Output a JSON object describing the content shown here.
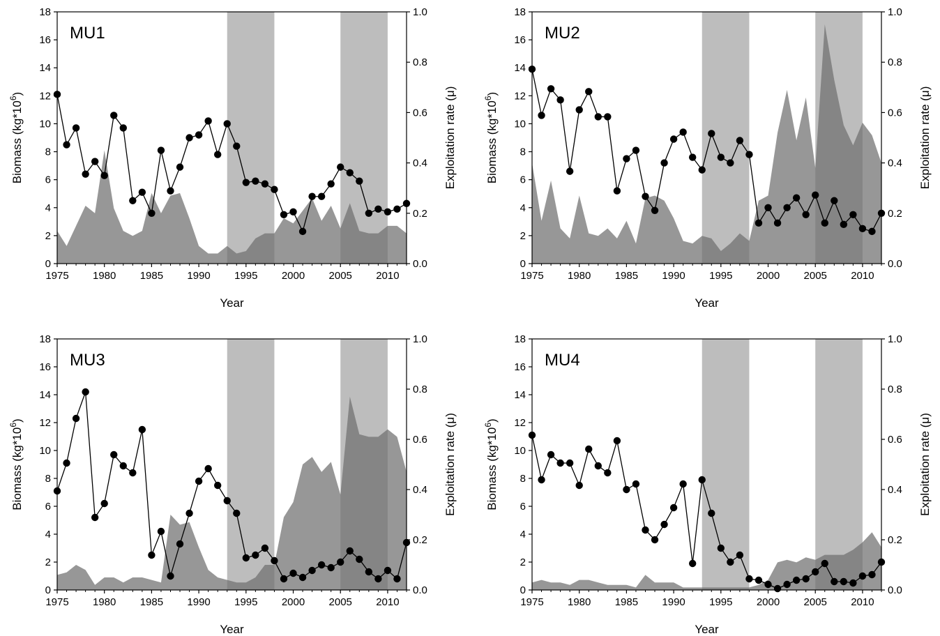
{
  "chart_data": [
    {
      "type": "line",
      "title": "MU1",
      "xlabel": "Year",
      "ylabel": "Biomass (kg*10",
      "ylabel_sup": "6",
      "ylabel_close": ")",
      "y2label": "Exploitation rate (μ)",
      "xlim": [
        1975,
        2012
      ],
      "ylim": [
        0,
        18
      ],
      "y2lim": [
        0,
        1.0
      ],
      "x_ticks": [
        1975,
        1980,
        1985,
        1990,
        1995,
        2000,
        2005,
        2010
      ],
      "y_ticks": [
        0,
        2,
        4,
        6,
        8,
        10,
        12,
        14,
        16,
        18
      ],
      "y2_ticks": [
        "0.0",
        "0.2",
        "0.4",
        "0.6",
        "0.8",
        "1.0"
      ],
      "shaded_periods": [
        [
          1993,
          1998
        ],
        [
          2005,
          2010
        ]
      ],
      "grid": false,
      "series": [
        {
          "type": "line",
          "x": [
            1975,
            1976,
            1977,
            1978,
            1979,
            1980,
            1981,
            1982,
            1983,
            1984,
            1985,
            1986,
            1987,
            1988,
            1989,
            1990,
            1991,
            1992,
            1993,
            1994,
            1995,
            1996,
            1997,
            1998,
            1999,
            2000,
            2001,
            2002,
            2003,
            2004,
            2005,
            2006,
            2007,
            2008,
            2009,
            2010,
            2011,
            2012
          ],
          "values": [
            12.1,
            8.5,
            9.7,
            6.4,
            7.3,
            6.3,
            10.6,
            9.7,
            4.5,
            5.1,
            3.6,
            8.1,
            5.2,
            6.9,
            9.0,
            9.2,
            10.2,
            7.8,
            10.0,
            8.4,
            5.8,
            5.9,
            5.7,
            5.3,
            3.5,
            3.7,
            2.3,
            4.8,
            4.8,
            5.7,
            6.9,
            6.5,
            5.9,
            3.6,
            3.9,
            3.7,
            3.9,
            4.3
          ]
        },
        {
          "type": "area",
          "axis": "right",
          "x": [
            1975,
            1976,
            1977,
            1978,
            1979,
            1980,
            1981,
            1982,
            1983,
            1984,
            1985,
            1986,
            1987,
            1988,
            1989,
            1990,
            1991,
            1992,
            1993,
            1994,
            1995,
            1996,
            1997,
            1998,
            1999,
            2000,
            2001,
            2002,
            2003,
            2004,
            2005,
            2006,
            2007,
            2008,
            2009,
            2010,
            2011,
            2012
          ],
          "values": [
            0.13,
            0.07,
            0.15,
            0.23,
            0.2,
            0.45,
            0.22,
            0.13,
            0.11,
            0.13,
            0.28,
            0.2,
            0.27,
            0.28,
            0.18,
            0.07,
            0.04,
            0.04,
            0.07,
            0.04,
            0.05,
            0.1,
            0.12,
            0.12,
            0.18,
            0.16,
            0.21,
            0.26,
            0.17,
            0.23,
            0.14,
            0.24,
            0.13,
            0.12,
            0.12,
            0.15,
            0.15,
            0.12
          ]
        }
      ]
    },
    {
      "type": "line",
      "title": "MU2",
      "xlabel": "Year",
      "ylabel": "Biomass (kg*10",
      "ylabel_sup": "6",
      "ylabel_close": ")",
      "y2label": "Exploitation rate (μ)",
      "xlim": [
        1975,
        2012
      ],
      "ylim": [
        0,
        18
      ],
      "y2lim": [
        0,
        1.0
      ],
      "x_ticks": [
        1975,
        1980,
        1985,
        1990,
        1995,
        2000,
        2005,
        2010
      ],
      "y_ticks": [
        0,
        2,
        4,
        6,
        8,
        10,
        12,
        14,
        16,
        18
      ],
      "y2_ticks": [
        "0.0",
        "0.2",
        "0.4",
        "0.6",
        "0.8",
        "1.0"
      ],
      "shaded_periods": [
        [
          1993,
          1998
        ],
        [
          2005,
          2010
        ]
      ],
      "grid": false,
      "series": [
        {
          "type": "line",
          "x": [
            1975,
            1976,
            1977,
            1978,
            1979,
            1980,
            1981,
            1982,
            1983,
            1984,
            1985,
            1986,
            1987,
            1988,
            1989,
            1990,
            1991,
            1992,
            1993,
            1994,
            1995,
            1996,
            1997,
            1998,
            1999,
            2000,
            2001,
            2002,
            2003,
            2004,
            2005,
            2006,
            2007,
            2008,
            2009,
            2010,
            2011,
            2012
          ],
          "values": [
            13.9,
            10.6,
            12.5,
            11.7,
            6.6,
            11.0,
            12.3,
            10.5,
            10.5,
            5.2,
            7.5,
            8.1,
            4.8,
            3.8,
            7.2,
            8.9,
            9.4,
            7.6,
            6.7,
            9.3,
            7.6,
            7.2,
            8.8,
            7.8,
            2.9,
            4.0,
            2.9,
            4.0,
            4.7,
            3.5,
            4.9,
            2.9,
            4.5,
            2.8,
            3.5,
            2.5,
            2.3,
            3.6
          ]
        },
        {
          "type": "area",
          "axis": "right",
          "x": [
            1975,
            1976,
            1977,
            1978,
            1979,
            1980,
            1981,
            1982,
            1983,
            1984,
            1985,
            1986,
            1987,
            1988,
            1989,
            1990,
            1991,
            1992,
            1993,
            1994,
            1995,
            1996,
            1997,
            1998,
            1999,
            2000,
            2001,
            2002,
            2003,
            2004,
            2005,
            2006,
            2007,
            2008,
            2009,
            2010,
            2011,
            2012
          ],
          "values": [
            0.4,
            0.17,
            0.33,
            0.14,
            0.1,
            0.27,
            0.12,
            0.11,
            0.14,
            0.1,
            0.17,
            0.08,
            0.26,
            0.27,
            0.25,
            0.18,
            0.09,
            0.08,
            0.11,
            0.1,
            0.05,
            0.08,
            0.12,
            0.09,
            0.25,
            0.27,
            0.52,
            0.69,
            0.49,
            0.66,
            0.38,
            0.95,
            0.73,
            0.55,
            0.47,
            0.56,
            0.51,
            0.4
          ]
        }
      ]
    },
    {
      "type": "line",
      "title": "MU3",
      "xlabel": "Year",
      "ylabel": "Biomass (kg*10",
      "ylabel_sup": "6",
      "ylabel_close": ")",
      "y2label": "Exploitation rate (μ)",
      "xlim": [
        1975,
        2012
      ],
      "ylim": [
        0,
        18
      ],
      "y2lim": [
        0,
        1.0
      ],
      "x_ticks": [
        1975,
        1980,
        1985,
        1990,
        1995,
        2000,
        2005,
        2010
      ],
      "y_ticks": [
        0,
        2,
        4,
        6,
        8,
        10,
        12,
        14,
        16,
        18
      ],
      "y2_ticks": [
        "0.0",
        "0.2",
        "0.4",
        "0.6",
        "0.8",
        "1.0"
      ],
      "shaded_periods": [
        [
          1993,
          1998
        ],
        [
          2005,
          2010
        ]
      ],
      "grid": false,
      "series": [
        {
          "type": "line",
          "x": [
            1975,
            1976,
            1977,
            1978,
            1979,
            1980,
            1981,
            1982,
            1983,
            1984,
            1985,
            1986,
            1987,
            1988,
            1989,
            1990,
            1991,
            1992,
            1993,
            1994,
            1995,
            1996,
            1997,
            1998,
            1999,
            2000,
            2001,
            2002,
            2003,
            2004,
            2005,
            2006,
            2007,
            2008,
            2009,
            2010,
            2011,
            2012
          ],
          "values": [
            7.1,
            9.1,
            12.3,
            14.2,
            5.2,
            6.2,
            9.7,
            8.9,
            8.4,
            11.5,
            2.5,
            4.2,
            1.0,
            3.3,
            5.5,
            7.8,
            8.7,
            7.5,
            6.4,
            5.5,
            2.3,
            2.5,
            3.0,
            2.1,
            0.8,
            1.2,
            0.9,
            1.4,
            1.8,
            1.6,
            2.0,
            2.8,
            2.2,
            1.3,
            0.8,
            1.4,
            0.8,
            3.4
          ]
        },
        {
          "type": "area",
          "axis": "right",
          "x": [
            1975,
            1976,
            1977,
            1978,
            1979,
            1980,
            1981,
            1982,
            1983,
            1984,
            1985,
            1986,
            1987,
            1988,
            1989,
            1990,
            1991,
            1992,
            1993,
            1994,
            1995,
            1996,
            1997,
            1998,
            1999,
            2000,
            2001,
            2002,
            2003,
            2004,
            2005,
            2006,
            2007,
            2008,
            2009,
            2010,
            2011,
            2012
          ],
          "values": [
            0.06,
            0.07,
            0.1,
            0.08,
            0.02,
            0.05,
            0.05,
            0.03,
            0.05,
            0.05,
            0.04,
            0.03,
            0.3,
            0.26,
            0.27,
            0.17,
            0.08,
            0.05,
            0.04,
            0.03,
            0.03,
            0.05,
            0.1,
            0.1,
            0.29,
            0.35,
            0.5,
            0.53,
            0.47,
            0.51,
            0.38,
            0.77,
            0.62,
            0.61,
            0.61,
            0.64,
            0.61,
            0.47
          ]
        }
      ]
    },
    {
      "type": "line",
      "title": "MU4",
      "xlabel": "Year",
      "ylabel": "Biomass (kg*10",
      "ylabel_sup": "6",
      "ylabel_close": ")",
      "y2label": "Exploitation rate (μ)",
      "xlim": [
        1975,
        2012
      ],
      "ylim": [
        0,
        18
      ],
      "y2lim": [
        0,
        1.0
      ],
      "x_ticks": [
        1975,
        1980,
        1985,
        1990,
        1995,
        2000,
        2005,
        2010
      ],
      "y_ticks": [
        0,
        2,
        4,
        6,
        8,
        10,
        12,
        14,
        16,
        18
      ],
      "y2_ticks": [
        "0.0",
        "0.2",
        "0.4",
        "0.6",
        "0.8",
        "1.0"
      ],
      "shaded_periods": [
        [
          1993,
          1998
        ],
        [
          2005,
          2010
        ]
      ],
      "grid": false,
      "series": [
        {
          "type": "line",
          "x": [
            1975,
            1976,
            1977,
            1978,
            1979,
            1980,
            1981,
            1982,
            1983,
            1984,
            1985,
            1986,
            1987,
            1988,
            1989,
            1990,
            1991,
            1992,
            1993,
            1994,
            1995,
            1996,
            1997,
            1998,
            1999,
            2000,
            2001,
            2002,
            2003,
            2004,
            2005,
            2006,
            2007,
            2008,
            2009,
            2010,
            2011,
            2012
          ],
          "values": [
            11.1,
            7.9,
            9.7,
            9.1,
            9.1,
            7.5,
            10.1,
            8.9,
            8.4,
            10.7,
            7.2,
            7.6,
            4.3,
            3.6,
            4.7,
            5.9,
            7.6,
            1.9,
            7.9,
            5.5,
            3.0,
            2.0,
            2.5,
            0.8,
            0.7,
            0.4,
            0.1,
            0.4,
            0.7,
            0.8,
            1.3,
            1.9,
            0.6,
            0.6,
            0.5,
            1.0,
            1.1,
            2.0
          ]
        },
        {
          "type": "area",
          "axis": "right",
          "x": [
            1975,
            1976,
            1977,
            1978,
            1979,
            1980,
            1981,
            1982,
            1983,
            1984,
            1985,
            1986,
            1987,
            1988,
            1989,
            1990,
            1991,
            1992,
            1993,
            1994,
            1995,
            1996,
            1997,
            1998,
            1999,
            2000,
            2001,
            2002,
            2003,
            2004,
            2005,
            2006,
            2007,
            2008,
            2009,
            2010,
            2011,
            2012
          ],
          "values": [
            0.03,
            0.04,
            0.03,
            0.03,
            0.02,
            0.04,
            0.04,
            0.03,
            0.02,
            0.02,
            0.02,
            0.01,
            0.06,
            0.03,
            0.03,
            0.03,
            0.01,
            0.01,
            0.01,
            0.01,
            0.01,
            0.01,
            0.01,
            0.01,
            0.02,
            0.04,
            0.11,
            0.12,
            0.11,
            0.13,
            0.12,
            0.14,
            0.14,
            0.14,
            0.16,
            0.19,
            0.23,
            0.17
          ]
        }
      ]
    }
  ]
}
